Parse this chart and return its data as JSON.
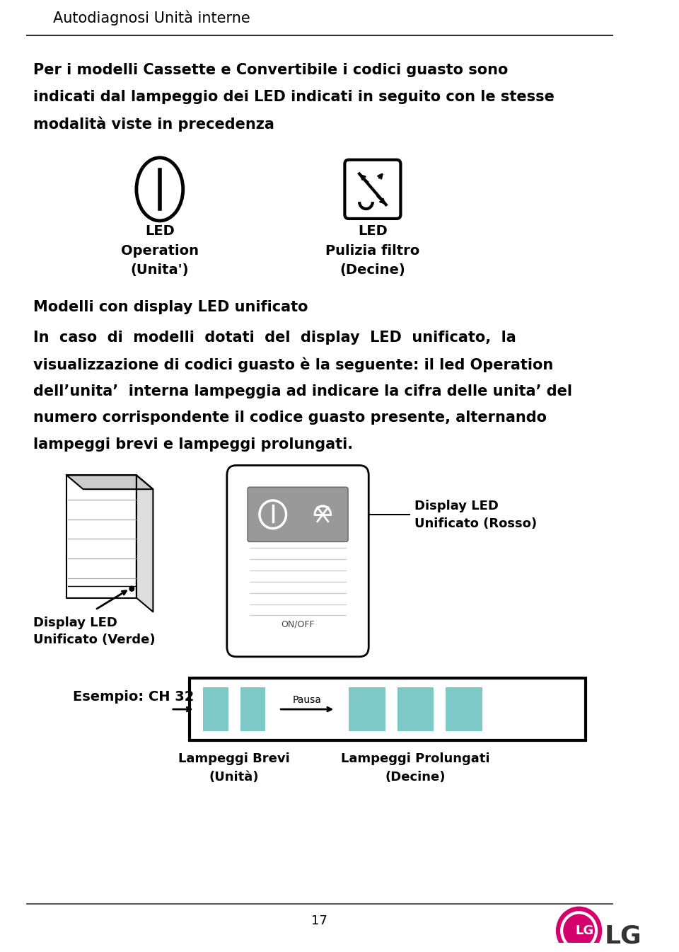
{
  "title": "Autodiagnosi Unità interne",
  "bg_color": "#ffffff",
  "text_color": "#000000",
  "para1_line1": "Per i modelli Cassette e Convertibile i codici guasto sono",
  "para1_line2": "indicati dal lampeggio dei LED indicati in seguito con le stesse",
  "para1_line3": "modalità viste in precedenza",
  "led_left_label1": "LED",
  "led_left_label2": "Operation",
  "led_left_label3": "(Unita')",
  "led_right_label1": "LED",
  "led_right_label2": "Pulizia filtro",
  "led_right_label3": "(Decine)",
  "section2_title": "Modelli con display LED unificato",
  "para2_line1": "In  caso  di  modelli  dotati  del  display  LED  unificato,  la",
  "para2_line2": "visualizzazione di codici guasto è la seguente: il led Operation",
  "para2_line3": "dell’unita’  interna lampeggia ad indicare la cifra delle unita’ del",
  "para2_line4": "numero corrispondente il codice guasto presente, alternando",
  "para2_line5": "lampeggi brevi e lampeggi prolungati.",
  "display_led_rosso_label1": "Display LED",
  "display_led_rosso_label2": "Unificato (Rosso)",
  "display_led_verde_label1": "Display LED",
  "display_led_verde_label2": "Unificato (Verde)",
  "esempio_label": "Esempio: CH 32",
  "lampeggi_brevi": "Lampeggi Brevi",
  "lampeggi_prolungati": "Lampeggi Prolungati",
  "unita_label": "(Unità)",
  "decine_label": "(Decine)",
  "pausa_label": "Pausa",
  "page_number": "17",
  "bar_color": "#7ec8c8"
}
